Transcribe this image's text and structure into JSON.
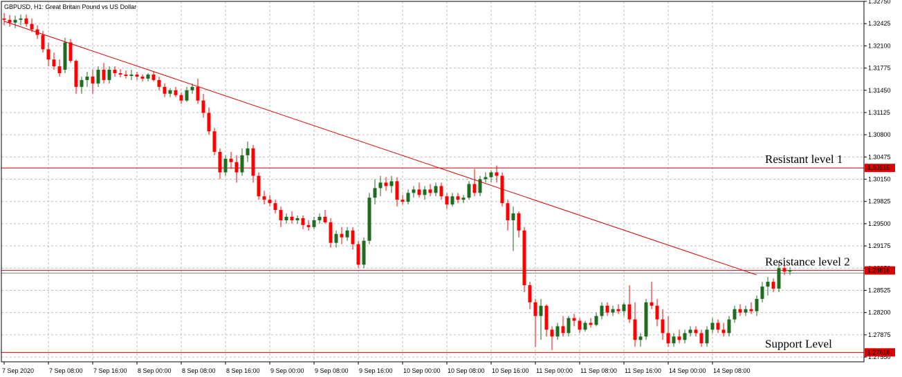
{
  "chart_data": {
    "type": "candlestick",
    "title": "GBPUSD, H1: Great Britain Pound vs US Dollar",
    "colors": {
      "up": "#1f6b1f",
      "down": "#ff0000",
      "grid": "#bdbdbd",
      "line": "#dd0000",
      "axis": "#000000"
    },
    "y_axis": {
      "position": "right",
      "range": [
        1.2748,
        1.3275
      ],
      "ticks": [
        "1.32750",
        "1.32425",
        "1.32100",
        "1.31775",
        "1.31450",
        "1.31125",
        "1.30800",
        "1.30475",
        "1.30150",
        "1.29825",
        "1.29500",
        "1.29175",
        "1.28850",
        "1.28525",
        "1.28200",
        "1.27875",
        "1.27550"
      ]
    },
    "x_axis": {
      "ticks": [
        "7 Sep 2020",
        "7 Sep 08:00",
        "7 Sep 16:00",
        "8 Sep 00:00",
        "8 Sep 08:00",
        "8 Sep 16:00",
        "9 Sep 00:00",
        "9 Sep 08:00",
        "9 Sep 16:00",
        "10 Sep 00:00",
        "10 Sep 08:00",
        "10 Sep 16:00",
        "11 Sep 00:00",
        "11 Sep 08:00",
        "11 Sep 16:00",
        "14 Sep 00:00",
        "14 Sep 08:00"
      ]
    },
    "grid": true,
    "levels": [
      {
        "price": 1.30315,
        "price_label": "1.30315",
        "annotation": "Resistant level 1"
      },
      {
        "price": 1.28816,
        "price_label": "1.28816",
        "annotation": "Resistance level 2"
      },
      {
        "price": 1.27618,
        "price_label": "1.27618",
        "annotation": "Support Level"
      }
    ],
    "trendline": {
      "from_index": 0,
      "from_price": 1.3246,
      "to_index": 136,
      "to_price": 1.2875
    },
    "ohlc": [
      [
        1.325,
        1.3258,
        1.324,
        1.3248
      ],
      [
        1.3248,
        1.3255,
        1.3238,
        1.3244
      ],
      [
        1.3244,
        1.3254,
        1.3236,
        1.3248
      ],
      [
        1.3248,
        1.3256,
        1.324,
        1.325
      ],
      [
        1.325,
        1.3256,
        1.3238,
        1.3242
      ],
      [
        1.3242,
        1.325,
        1.323,
        1.3234
      ],
      [
        1.3234,
        1.324,
        1.322,
        1.3226
      ],
      [
        1.3226,
        1.3232,
        1.32,
        1.3205
      ],
      [
        1.3205,
        1.3215,
        1.318,
        1.319
      ],
      [
        1.319,
        1.32,
        1.3175,
        1.318
      ],
      [
        1.318,
        1.319,
        1.3165,
        1.317
      ],
      [
        1.3175,
        1.3222,
        1.317,
        1.3215
      ],
      [
        1.3215,
        1.322,
        1.3185,
        1.3188
      ],
      [
        1.3188,
        1.319,
        1.314,
        1.315
      ],
      [
        1.315,
        1.3165,
        1.314,
        1.316
      ],
      [
        1.316,
        1.3172,
        1.315,
        1.3165
      ],
      [
        1.3165,
        1.3175,
        1.314,
        1.3155
      ],
      [
        1.3155,
        1.318,
        1.315,
        1.3175
      ],
      [
        1.3175,
        1.3185,
        1.3155,
        1.316
      ],
      [
        1.316,
        1.318,
        1.3155,
        1.3175
      ],
      [
        1.3175,
        1.318,
        1.3165,
        1.317
      ],
      [
        1.317,
        1.3176,
        1.3164,
        1.3168
      ],
      [
        1.3168,
        1.3174,
        1.3162,
        1.3166
      ],
      [
        1.3166,
        1.3175,
        1.316,
        1.3168
      ],
      [
        1.3168,
        1.3172,
        1.316,
        1.3165
      ],
      [
        1.3165,
        1.3168,
        1.3158,
        1.3162
      ],
      [
        1.3162,
        1.317,
        1.3158,
        1.3168
      ],
      [
        1.3168,
        1.3172,
        1.3158,
        1.316
      ],
      [
        1.316,
        1.3165,
        1.3145,
        1.315
      ],
      [
        1.315,
        1.3155,
        1.3135,
        1.314
      ],
      [
        1.314,
        1.3148,
        1.3135,
        1.3145
      ],
      [
        1.3145,
        1.315,
        1.3135,
        1.3138
      ],
      [
        1.3138,
        1.3142,
        1.3125,
        1.313
      ],
      [
        1.313,
        1.315,
        1.3128,
        1.3145
      ],
      [
        1.3145,
        1.3155,
        1.314,
        1.315
      ],
      [
        1.315,
        1.3162,
        1.3125,
        1.313
      ],
      [
        1.313,
        1.314,
        1.3105,
        1.3112
      ],
      [
        1.3112,
        1.312,
        1.308,
        1.3085
      ],
      [
        1.3085,
        1.309,
        1.305,
        1.3055
      ],
      [
        1.3055,
        1.306,
        1.3015,
        1.3025
      ],
      [
        1.3025,
        1.305,
        1.302,
        1.3045
      ],
      [
        1.3045,
        1.3055,
        1.303,
        1.304
      ],
      [
        1.304,
        1.305,
        1.301,
        1.3025
      ],
      [
        1.3025,
        1.306,
        1.302,
        1.305
      ],
      [
        1.305,
        1.307,
        1.304,
        1.306
      ],
      [
        1.306,
        1.3065,
        1.301,
        1.302
      ],
      [
        1.302,
        1.3025,
        1.2985,
        1.299
      ],
      [
        1.299,
        1.2998,
        1.2978,
        1.2985
      ],
      [
        1.2985,
        1.2992,
        1.2975,
        1.298
      ],
      [
        1.298,
        1.2985,
        1.2965,
        1.297
      ],
      [
        1.297,
        1.2975,
        1.2945,
        1.2955
      ],
      [
        1.2955,
        1.2965,
        1.295,
        1.296
      ],
      [
        1.296,
        1.2968,
        1.295,
        1.2955
      ],
      [
        1.2955,
        1.2962,
        1.295,
        1.2958
      ],
      [
        1.2958,
        1.2962,
        1.2942,
        1.2948
      ],
      [
        1.2948,
        1.2955,
        1.294,
        1.2945
      ],
      [
        1.2945,
        1.296,
        1.2942,
        1.2955
      ],
      [
        1.2955,
        1.2965,
        1.295,
        1.296
      ],
      [
        1.296,
        1.297,
        1.295,
        1.2952
      ],
      [
        1.2952,
        1.2958,
        1.2915,
        1.2922
      ],
      [
        1.2922,
        1.294,
        1.2915,
        1.2935
      ],
      [
        1.2935,
        1.2945,
        1.292,
        1.293
      ],
      [
        1.293,
        1.2945,
        1.2925,
        1.294
      ],
      [
        1.294,
        1.2945,
        1.2912,
        1.292
      ],
      [
        1.292,
        1.2925,
        1.2885,
        1.289
      ],
      [
        1.289,
        1.293,
        1.2885,
        1.2925
      ],
      [
        1.2925,
        1.2995,
        1.292,
        1.2988
      ],
      [
        1.2988,
        1.3015,
        1.2978,
        1.3002
      ],
      [
        1.3002,
        1.302,
        1.299,
        1.301
      ],
      [
        1.301,
        1.3018,
        1.2998,
        1.3005
      ],
      [
        1.3005,
        1.302,
        1.2995,
        1.3012
      ],
      [
        1.3012,
        1.3018,
        1.2975,
        1.2985
      ],
      [
        1.2985,
        1.2992,
        1.2978,
        1.2982
      ],
      [
        1.2982,
        1.3,
        1.2978,
        1.2995
      ],
      [
        1.2995,
        1.3005,
        1.2988,
        1.3
      ],
      [
        1.3,
        1.301,
        1.2988,
        1.2992
      ],
      [
        1.2992,
        1.3005,
        1.2985,
        1.3
      ],
      [
        1.3,
        1.3008,
        1.299,
        1.2995
      ],
      [
        1.2995,
        1.301,
        1.299,
        1.3005
      ],
      [
        1.3005,
        1.301,
        1.2985,
        1.299
      ],
      [
        1.299,
        1.2995,
        1.2972,
        1.2978
      ],
      [
        1.2978,
        1.2995,
        1.2975,
        1.299
      ],
      [
        1.299,
        1.2995,
        1.298,
        1.2985
      ],
      [
        1.2985,
        1.2992,
        1.298,
        1.2988
      ],
      [
        1.2988,
        1.3012,
        1.2985,
        1.3008
      ],
      [
        1.3008,
        1.303,
        1.299,
        1.2995
      ],
      [
        1.2995,
        1.302,
        1.299,
        1.3015
      ],
      [
        1.3015,
        1.3025,
        1.301,
        1.3018
      ],
      [
        1.3018,
        1.3028,
        1.301,
        1.3025
      ],
      [
        1.3025,
        1.3035,
        1.301,
        1.302
      ],
      [
        1.302,
        1.3025,
        1.2975,
        1.298
      ],
      [
        1.298,
        1.2985,
        1.294,
        1.2955
      ],
      [
        1.2955,
        1.2975,
        1.291,
        1.2965
      ],
      [
        1.2965,
        1.2968,
        1.293,
        1.294
      ],
      [
        1.294,
        1.2945,
        1.285,
        1.286
      ],
      [
        1.286,
        1.2865,
        1.2825,
        1.2835
      ],
      [
        1.2835,
        1.284,
        1.277,
        1.2815
      ],
      [
        1.2815,
        1.284,
        1.278,
        1.283
      ],
      [
        1.283,
        1.2832,
        1.2785,
        1.2795
      ],
      [
        1.2795,
        1.28,
        1.2765,
        1.2785
      ],
      [
        1.2785,
        1.2805,
        1.278,
        1.28
      ],
      [
        1.28,
        1.2815,
        1.2785,
        1.279
      ],
      [
        1.279,
        1.2815,
        1.2785,
        1.2812
      ],
      [
        1.2812,
        1.2818,
        1.28,
        1.2808
      ],
      [
        1.2808,
        1.2812,
        1.279,
        1.2795
      ],
      [
        1.2795,
        1.2808,
        1.2792,
        1.2805
      ],
      [
        1.2805,
        1.2812,
        1.2798,
        1.2802
      ],
      [
        1.2802,
        1.282,
        1.28,
        1.2815
      ],
      [
        1.2815,
        1.2835,
        1.281,
        1.283
      ],
      [
        1.283,
        1.2835,
        1.2815,
        1.282
      ],
      [
        1.282,
        1.283,
        1.2815,
        1.2825
      ],
      [
        1.2825,
        1.2832,
        1.2818,
        1.2822
      ],
      [
        1.2822,
        1.2835,
        1.2815,
        1.2832
      ],
      [
        1.2832,
        1.286,
        1.2805,
        1.281
      ],
      [
        1.281,
        1.2835,
        1.277,
        1.278
      ],
      [
        1.278,
        1.279,
        1.277,
        1.2785
      ],
      [
        1.2785,
        1.284,
        1.278,
        1.2835
      ],
      [
        1.2835,
        1.2865,
        1.2825,
        1.283
      ],
      [
        1.283,
        1.284,
        1.28,
        1.281
      ],
      [
        1.281,
        1.2825,
        1.278,
        1.279
      ],
      [
        1.279,
        1.2815,
        1.277,
        1.2775
      ],
      [
        1.2775,
        1.279,
        1.277,
        1.2785
      ],
      [
        1.2785,
        1.2795,
        1.2775,
        1.278
      ],
      [
        1.278,
        1.2795,
        1.2775,
        1.279
      ],
      [
        1.279,
        1.28,
        1.2785,
        1.2795
      ],
      [
        1.2795,
        1.28,
        1.2785,
        1.279
      ],
      [
        1.279,
        1.2795,
        1.277,
        1.2775
      ],
      [
        1.2775,
        1.28,
        1.277,
        1.2795
      ],
      [
        1.2795,
        1.2812,
        1.279,
        1.2805
      ],
      [
        1.2805,
        1.281,
        1.279,
        1.2795
      ],
      [
        1.2795,
        1.2805,
        1.2785,
        1.279
      ],
      [
        1.279,
        1.2815,
        1.2785,
        1.281
      ],
      [
        1.281,
        1.283,
        1.2805,
        1.2825
      ],
      [
        1.2825,
        1.2832,
        1.2815,
        1.282
      ],
      [
        1.282,
        1.283,
        1.2815,
        1.2825
      ],
      [
        1.2825,
        1.2835,
        1.2818,
        1.2822
      ],
      [
        1.2822,
        1.2845,
        1.2815,
        1.284
      ],
      [
        1.284,
        1.2865,
        1.2835,
        1.2858
      ],
      [
        1.2858,
        1.2872,
        1.2845,
        1.2865
      ],
      [
        1.2865,
        1.287,
        1.285,
        1.2855
      ],
      [
        1.2855,
        1.2895,
        1.285,
        1.2885
      ],
      [
        1.2885,
        1.2892,
        1.2875,
        1.288
      ],
      [
        1.288,
        1.2886,
        1.2875,
        1.2882
      ]
    ]
  }
}
